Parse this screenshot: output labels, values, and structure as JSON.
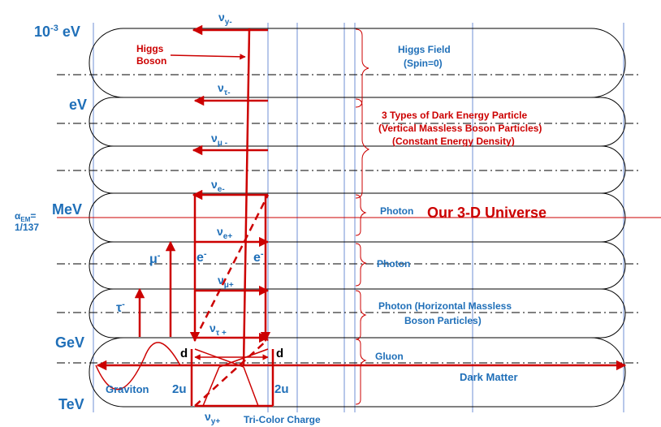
{
  "colors": {
    "blue": "#1f6fb8",
    "red": "#cc0000",
    "black": "#000000",
    "axis_blue": "#6f8fd6"
  },
  "energy_labels": {
    "mev_minus3": "10",
    "mev_minus3_exp": "-3",
    "mev_minus3_unit": " eV",
    "ev": "eV",
    "mev": "MeV",
    "gev": "GeV",
    "tev": "TeV"
  },
  "alpha": {
    "symbol": "α",
    "sub": "EM",
    "eq": "=",
    "value": "1/137"
  },
  "neutrinos": {
    "nu": "ν",
    "y_minus": "y-",
    "tau_minus": "τ-",
    "mu_minus": "μ -",
    "e_minus": "e-",
    "e_plus": "e+",
    "mu_plus": "μ+",
    "tau_plus": "τ +",
    "y_plus": "y+"
  },
  "particles": {
    "mu": "μ",
    "mu_sup": "-",
    "tau": "τ",
    "tau_sup": "-",
    "e_left": "e",
    "e_right": "e",
    "e_sup": "-",
    "d_left": "d",
    "d_right": "d",
    "u_left": "2u",
    "u_right": "2u"
  },
  "annotations": {
    "higgs_boson_line1": "Higgs",
    "higgs_boson_line2": "Boson",
    "higgs_field_line1": "Higgs Field",
    "higgs_field_line2": "(Spin=0)",
    "dark_energy_line1": "3 Types of Dark Energy Particle",
    "dark_energy_line2": "(Vertical Massless Boson Particles)",
    "dark_energy_line3": "(Constant Energy Density)",
    "photon1": "Photon",
    "universe": "Our 3-D Universe",
    "photon2": "Photon",
    "photon3_line1": "Photon (Horizontal Massless",
    "photon3_line2": "Boson Particles)",
    "gluon": "Gluon",
    "dark_matter": "Dark Matter",
    "graviton": "Graviton",
    "tri_color": "Tri-Color Charge"
  }
}
